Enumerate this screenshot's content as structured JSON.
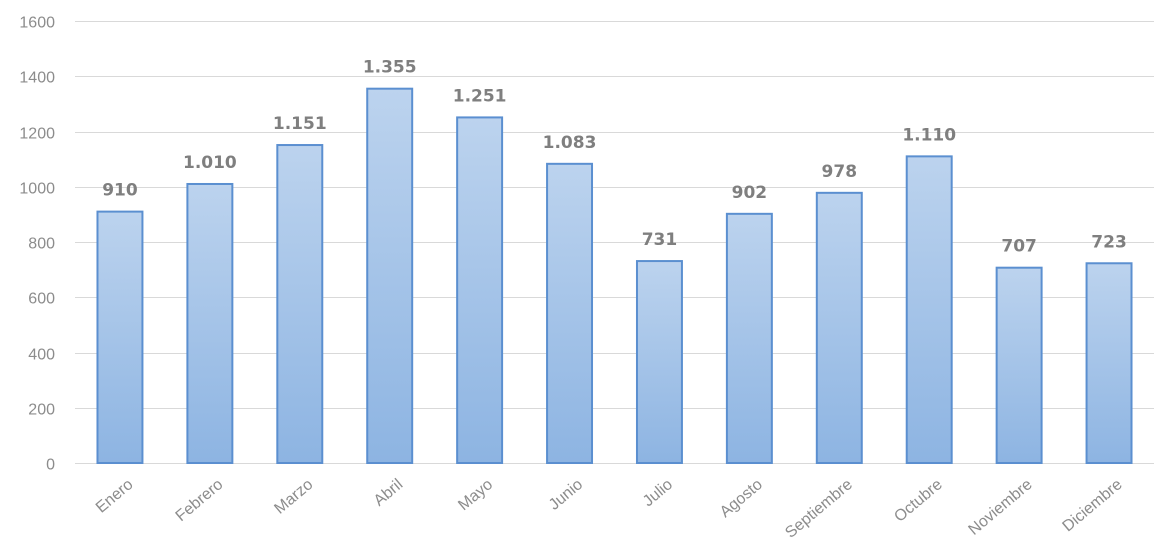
{
  "chart_data": {
    "type": "bar",
    "title": "",
    "xlabel": "",
    "ylabel": "",
    "categories": [
      "Enero",
      "Febrero",
      "Marzo",
      "Abril",
      "Mayo",
      "Junio",
      "Julio",
      "Agosto",
      "Septiembre",
      "Octubre",
      "Noviembre",
      "Diciembre"
    ],
    "values": [
      910,
      1010,
      1151,
      1355,
      1251,
      1083,
      731,
      902,
      978,
      1110,
      707,
      723
    ],
    "value_labels": [
      "910",
      "1.010",
      "1.151",
      "1.355",
      "1.251",
      "1.083",
      "731",
      "902",
      "978",
      "1.110",
      "707",
      "723"
    ],
    "ylim": [
      0,
      1600
    ],
    "yticks": [
      0,
      200,
      400,
      600,
      800,
      1000,
      1200,
      1400,
      1600
    ],
    "ytick_labels": [
      "0",
      "200",
      "400",
      "600",
      "800",
      "1000",
      "1200",
      "1400",
      "1600"
    ],
    "grid": true,
    "legend": "none",
    "colors": {
      "bar_top": "#bcd3ee",
      "bar_bottom": "#8db4e2",
      "bar_border": "#5b8fd0",
      "grid": "#d9d9d9",
      "text": "#8c8c8c",
      "data_label": "#7f7f7f"
    }
  }
}
